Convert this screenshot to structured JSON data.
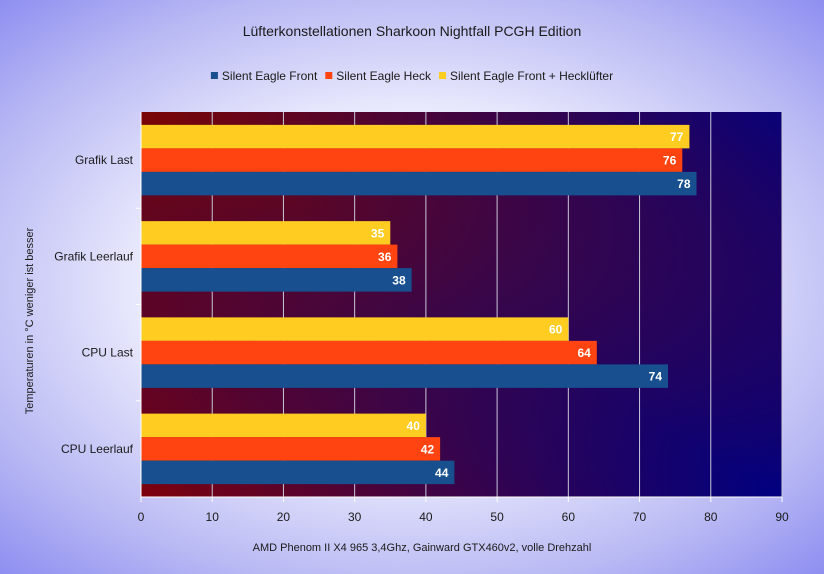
{
  "chart_data": {
    "type": "bar",
    "orientation": "horizontal",
    "title": "Lüfterkonstellationen Sharkoon Nightfall PCGH Edition",
    "xlabel": "AMD Phenom II X4 965 3,4Ghz, Gainward GTX460v2, volle Drehzahl",
    "ylabel": "Temperaturen in °C weniger ist besser",
    "categories": [
      "Grafik Last",
      "Grafik Leerlauf",
      "CPU Last",
      "CPU Leerlauf"
    ],
    "series": [
      {
        "name": "Silent Eagle Front + Hecklüfter",
        "color": "#ffcc22",
        "values": [
          77,
          35,
          60,
          40
        ]
      },
      {
        "name": "Silent Eagle Heck",
        "color": "#ff4411",
        "values": [
          76,
          36,
          64,
          42
        ]
      },
      {
        "name": "Silent Eagle Front",
        "color": "#174f8f",
        "values": [
          78,
          38,
          74,
          44
        ]
      }
    ],
    "legend_order": [
      "Silent Eagle Front",
      "Silent Eagle Heck",
      "Silent Eagle Front + Hecklüfter"
    ],
    "legend_placement": "top",
    "xlim": [
      0,
      90
    ],
    "xticks": [
      0,
      10,
      20,
      30,
      40,
      50,
      60,
      70,
      80,
      90
    ],
    "grid": true,
    "data_labels": true
  }
}
